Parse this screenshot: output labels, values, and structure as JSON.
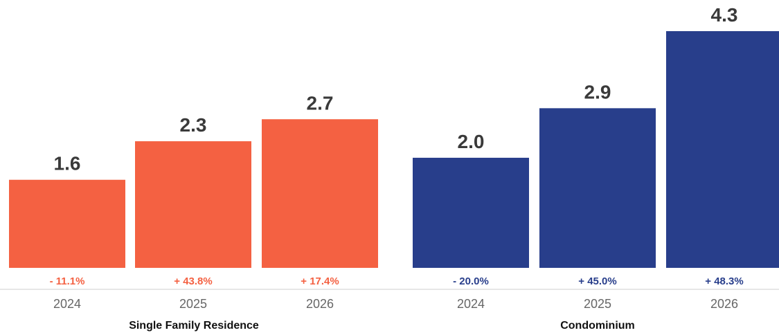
{
  "chart_data": {
    "type": "bar",
    "title": "",
    "xlabel": "",
    "ylabel": "",
    "ylim": [
      0,
      4.3
    ],
    "grid": false,
    "legend": "none",
    "groups": [
      {
        "name": "Single Family Residence",
        "color": "#f46142",
        "categories": [
          "2024",
          "2025",
          "2026"
        ],
        "values": [
          1.6,
          2.3,
          2.7
        ],
        "value_labels": [
          "1.6",
          "2.3",
          "2.7"
        ],
        "changes": [
          "- 11.1%",
          "+ 43.8%",
          "+ 17.4%"
        ]
      },
      {
        "name": "Condominium",
        "color": "#283e8b",
        "categories": [
          "2024",
          "2025",
          "2026"
        ],
        "values": [
          2.0,
          2.9,
          4.3
        ],
        "value_labels": [
          "2.0",
          "2.9",
          "4.3"
        ],
        "changes": [
          "- 20.0%",
          "+ 45.0%",
          "+ 48.3%"
        ]
      }
    ]
  }
}
